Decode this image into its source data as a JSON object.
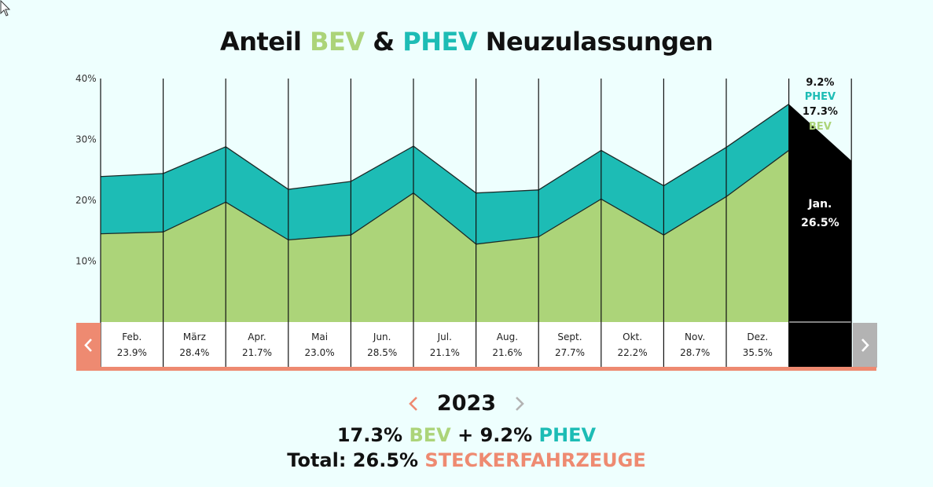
{
  "title": {
    "prefix": "Anteil",
    "bev": "BEV",
    "amp": "&",
    "phev": "PHEV",
    "suffix": "Neuzulassungen"
  },
  "colors": {
    "bev": "#acd479",
    "phev": "#1dbcb5",
    "accent": "#ee8a71",
    "selected_bg": "#000000",
    "nav_inactive": "#b3b3b3",
    "background": "#eefffe"
  },
  "chart_data": {
    "type": "area",
    "stacked": true,
    "ylim": [
      0,
      40
    ],
    "yticks": [
      "10%",
      "20%",
      "30%",
      "40%"
    ],
    "months": [
      {
        "label": "Feb.",
        "total_label": "23.9%",
        "start": {
          "bev": 14.5,
          "total": 23.9
        },
        "end": {
          "bev": 14.8,
          "total": 24.4
        }
      },
      {
        "label": "März",
        "total_label": "28.4%",
        "start": {
          "bev": 14.8,
          "total": 24.4
        },
        "end": {
          "bev": 19.7,
          "total": 28.8
        }
      },
      {
        "label": "Apr.",
        "total_label": "21.7%",
        "start": {
          "bev": 19.7,
          "total": 28.8
        },
        "end": {
          "bev": 13.5,
          "total": 21.8
        }
      },
      {
        "label": "Mai",
        "total_label": "23.0%",
        "start": {
          "bev": 13.5,
          "total": 21.8
        },
        "end": {
          "bev": 14.3,
          "total": 23.1
        }
      },
      {
        "label": "Jun.",
        "total_label": "28.5%",
        "start": {
          "bev": 14.3,
          "total": 23.1
        },
        "end": {
          "bev": 21.2,
          "total": 28.9
        }
      },
      {
        "label": "Jul.",
        "total_label": "21.1%",
        "start": {
          "bev": 21.2,
          "total": 28.9
        },
        "end": {
          "bev": 12.8,
          "total": 21.2
        }
      },
      {
        "label": "Aug.",
        "total_label": "21.6%",
        "start": {
          "bev": 12.8,
          "total": 21.2
        },
        "end": {
          "bev": 14.0,
          "total": 21.7
        }
      },
      {
        "label": "Sept.",
        "total_label": "27.7%",
        "start": {
          "bev": 14.0,
          "total": 21.7
        },
        "end": {
          "bev": 20.2,
          "total": 28.2
        }
      },
      {
        "label": "Okt.",
        "total_label": "22.2%",
        "start": {
          "bev": 20.2,
          "total": 28.2
        },
        "end": {
          "bev": 14.3,
          "total": 22.4
        }
      },
      {
        "label": "Nov.",
        "total_label": "28.7%",
        "start": {
          "bev": 14.3,
          "total": 22.4
        },
        "end": {
          "bev": 20.6,
          "total": 28.7
        }
      },
      {
        "label": "Dez.",
        "total_label": "35.5%",
        "start": {
          "bev": 20.6,
          "total": 28.7
        },
        "end": {
          "bev": 28.2,
          "total": 35.8
        }
      }
    ],
    "selected": {
      "label": "Jan.",
      "total_label": "26.5%",
      "phev_label": "9.2%",
      "bev_label": "17.3%",
      "phev_name": "PHEV",
      "bev_name": "BEV",
      "start_total": 35.8,
      "end_total": 26.5
    }
  },
  "year": {
    "value": "2023"
  },
  "summary": {
    "line1": {
      "bev_value": "17.3%",
      "bev_label": "BEV",
      "plus": "+",
      "phev_value": "9.2%",
      "phev_label": "PHEV"
    },
    "line2": {
      "prefix": "Total:",
      "total_value": "26.5%",
      "label": "STECKERFAHRZEUGE"
    }
  }
}
